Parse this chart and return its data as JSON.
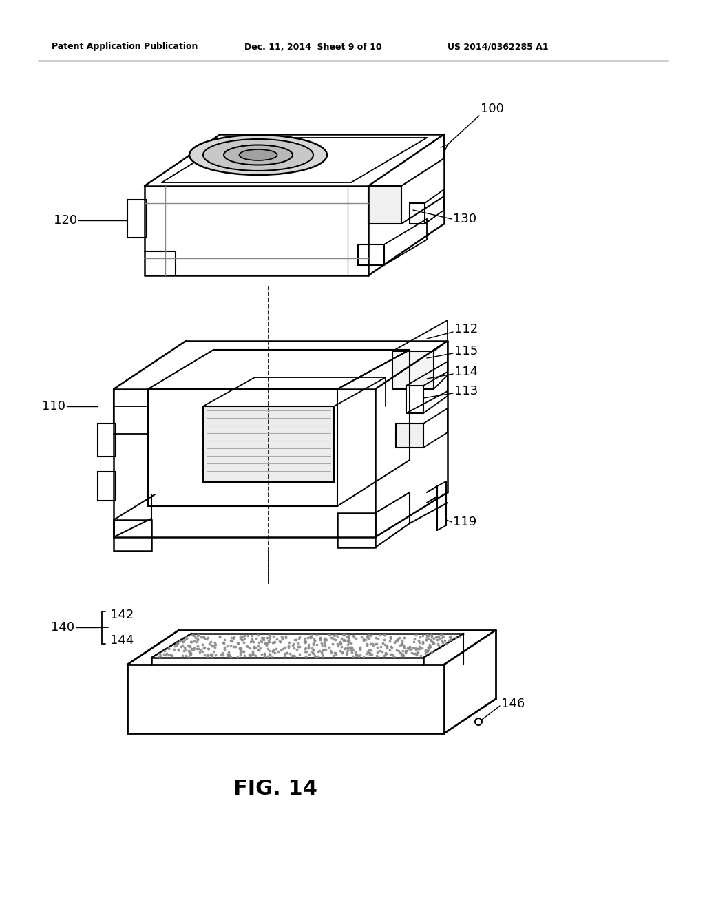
{
  "title": "FIG. 14",
  "header_left": "Patent Application Publication",
  "header_mid": "Dec. 11, 2014  Sheet 9 of 10",
  "header_right": "US 2014/0362285 A1",
  "bg_color": "#ffffff",
  "label_100": "100",
  "label_120": "120",
  "label_130": "130",
  "label_110": "110",
  "label_112": "112",
  "label_113": "113",
  "label_114": "114",
  "label_115": "115",
  "label_119": "119",
  "label_140": "140",
  "label_142": "142",
  "label_144": "144",
  "label_146": "146"
}
